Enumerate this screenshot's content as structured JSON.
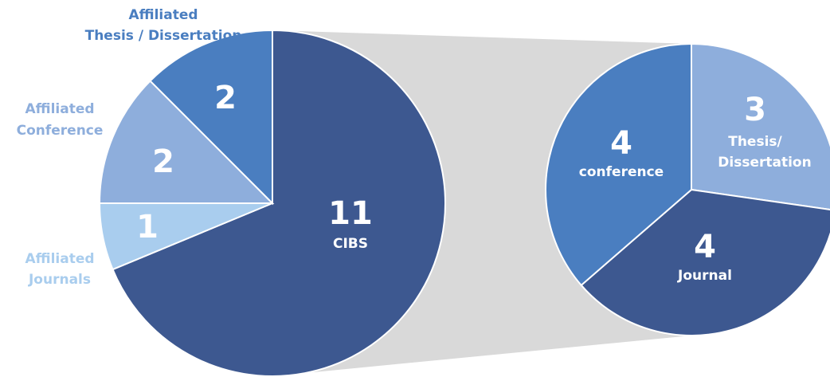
{
  "chart_data": [
    {
      "type": "pie",
      "categories": [
        [
          "CIBS"
        ],
        [
          "Affiliated",
          "Journals"
        ],
        [
          "Affiliated",
          "Conference"
        ],
        [
          "Affiliated",
          "Thesis / Dissertation"
        ]
      ],
      "values": [
        11,
        1,
        2,
        2
      ],
      "colors": [
        "#3d5890",
        "#a9cdee",
        "#8eaedc",
        "#4a7ec0"
      ]
    },
    {
      "type": "pie",
      "categories": [
        [
          "Thesis/",
          "Dissertation"
        ],
        [
          "Journal"
        ],
        [
          "conference"
        ]
      ],
      "values": [
        3,
        4,
        4
      ],
      "colors": [
        "#8eaedc",
        "#3d5890",
        "#4a7ec0"
      ]
    }
  ]
}
